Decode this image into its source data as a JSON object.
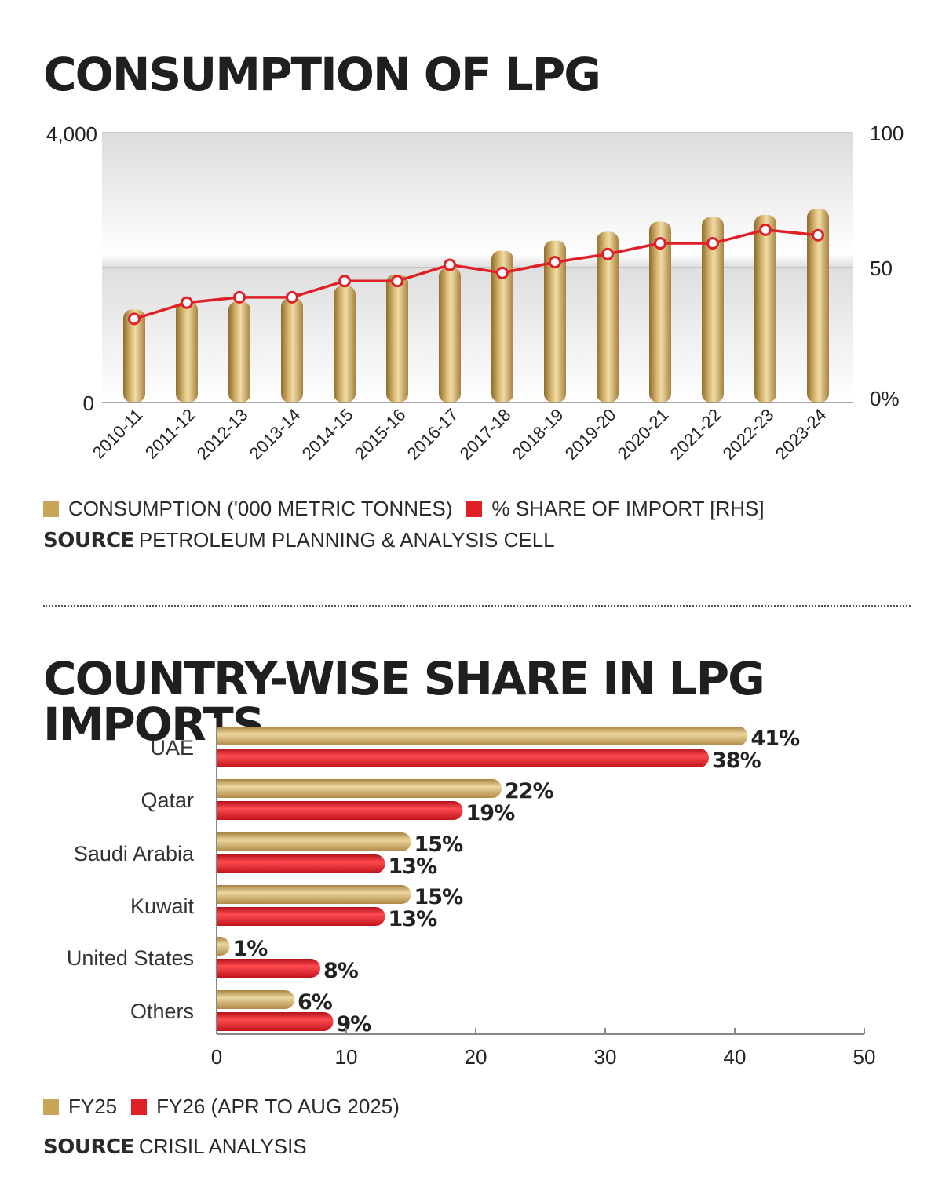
{
  "charts": {
    "consumption": {
      "title": "CONSUMPTION OF LPG",
      "legend": [
        {
          "label": "CONSUMPTION ('000 METRIC TONNES)",
          "color": "#c9a55a"
        },
        {
          "label": "% SHARE OF IMPORT [RHS]",
          "color": "#e02027"
        }
      ],
      "source_label": "SOURCE",
      "source_text": "PETROLEUM PLANNING & ANALYSIS CELL"
    },
    "imports": {
      "title": "COUNTRY-WISE SHARE IN LPG IMPORTS",
      "legend": [
        {
          "label": "FY25",
          "color": "#c9a55a"
        },
        {
          "label": "FY26 (APR TO AUG 2025)",
          "color": "#e02027"
        }
      ],
      "source_label": "SOURCE",
      "source_text": "CRISIL ANALYSIS"
    }
  },
  "chart_data": [
    {
      "type": "bar",
      "title": "CONSUMPTION OF LPG",
      "categories": [
        "2010-11",
        "2011-12",
        "2012-13",
        "2013-14",
        "2014-15",
        "2015-16",
        "2016-17",
        "2017-18",
        "2018-19",
        "2019-20",
        "2020-21",
        "2021-22",
        "2022-23",
        "2023-24"
      ],
      "series": [
        {
          "name": "CONSUMPTION ('000 METRIC TONNES)",
          "type": "bar",
          "axis": "left",
          "color": "#c9a55a",
          "values": [
            1380,
            1500,
            1500,
            1550,
            1730,
            1900,
            2000,
            2250,
            2400,
            2530,
            2680,
            2750,
            2780,
            2870
          ]
        },
        {
          "name": "% SHARE OF IMPORT [RHS]",
          "type": "line",
          "axis": "right",
          "color": "#e02027",
          "values": [
            31,
            37,
            39,
            39,
            45,
            45,
            51,
            48,
            52,
            55,
            59,
            59,
            64,
            62
          ]
        }
      ],
      "yaxis_left": {
        "ticks": [
          "0",
          "4,000"
        ],
        "ylim": [
          0,
          4000
        ]
      },
      "yaxis_right": {
        "ticks": [
          "0%",
          "50",
          "100"
        ],
        "ylim": [
          0,
          100
        ]
      },
      "grid": true,
      "legend_position": "bottom"
    },
    {
      "type": "bar",
      "orientation": "horizontal",
      "title": "COUNTRY-WISE SHARE IN LPG IMPORTS",
      "categories": [
        "UAE",
        "Qatar",
        "Saudi Arabia",
        "Kuwait",
        "United States",
        "Others"
      ],
      "series": [
        {
          "name": "FY25",
          "color": "#c9a55a",
          "values": [
            41,
            22,
            15,
            15,
            1,
            6
          ],
          "labels": [
            "41%",
            "22%",
            "15%",
            "15%",
            "1%",
            "6%"
          ]
        },
        {
          "name": "FY26 (APR TO AUG 2025)",
          "color": "#e02027",
          "values": [
            38,
            19,
            13,
            13,
            8,
            9
          ],
          "labels": [
            "38%",
            "19%",
            "13%",
            "13%",
            "8%",
            "9%"
          ]
        }
      ],
      "xaxis": {
        "ticks": [
          "0",
          "10",
          "20",
          "30",
          "40",
          "50"
        ],
        "xlim": [
          0,
          50
        ]
      },
      "legend_position": "bottom"
    }
  ]
}
